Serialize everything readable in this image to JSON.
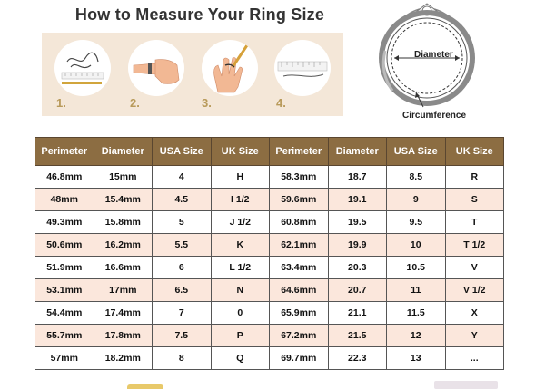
{
  "title": "How to Measure Your Ring Size",
  "steps": [
    {
      "number": "1.",
      "icon": "string-and-ruler-icon"
    },
    {
      "number": "2.",
      "icon": "finger-wrapped-icon"
    },
    {
      "number": "3.",
      "icon": "hand-marking-icon"
    },
    {
      "number": "4.",
      "icon": "ruler-measure-icon"
    }
  ],
  "diagram": {
    "diameter_label": "Diameter",
    "circumference_label": "Circumference",
    "icon": "ring-cross-section-icon"
  },
  "table": {
    "headers": [
      "Perimeter",
      "Diameter",
      "USA Size",
      "UK Size",
      "Perimeter",
      "Diameter",
      "USA Size",
      "UK Size"
    ],
    "rows": [
      [
        "46.8mm",
        "15mm",
        "4",
        "H",
        "58.3mm",
        "18.7",
        "8.5",
        "R"
      ],
      [
        "48mm",
        "15.4mm",
        "4.5",
        "I 1/2",
        "59.6mm",
        "19.1",
        "9",
        "S"
      ],
      [
        "49.3mm",
        "15.8mm",
        "5",
        "J 1/2",
        "60.8mm",
        "19.5",
        "9.5",
        "T"
      ],
      [
        "50.6mm",
        "16.2mm",
        "5.5",
        "K",
        "62.1mm",
        "19.9",
        "10",
        "T 1/2"
      ],
      [
        "51.9mm",
        "16.6mm",
        "6",
        "L 1/2",
        "63.4mm",
        "20.3",
        "10.5",
        "V"
      ],
      [
        "53.1mm",
        "17mm",
        "6.5",
        "N",
        "64.6mm",
        "20.7",
        "11",
        "V 1/2"
      ],
      [
        "54.4mm",
        "17.4mm",
        "7",
        "0",
        "65.9mm",
        "21.1",
        "11.5",
        "X"
      ],
      [
        "55.7mm",
        "17.8mm",
        "7.5",
        "P",
        "67.2mm",
        "21.5",
        "12",
        "Y"
      ],
      [
        "57mm",
        "18.2mm",
        "8",
        "Q",
        "69.7mm",
        "22.3",
        "13",
        "..."
      ]
    ]
  },
  "colors": {
    "header_bg": "#8c6d42",
    "shaded_row": "#fbe7dc",
    "panel_bg": "#f4e7d8",
    "step_number": "#b89a5a"
  }
}
